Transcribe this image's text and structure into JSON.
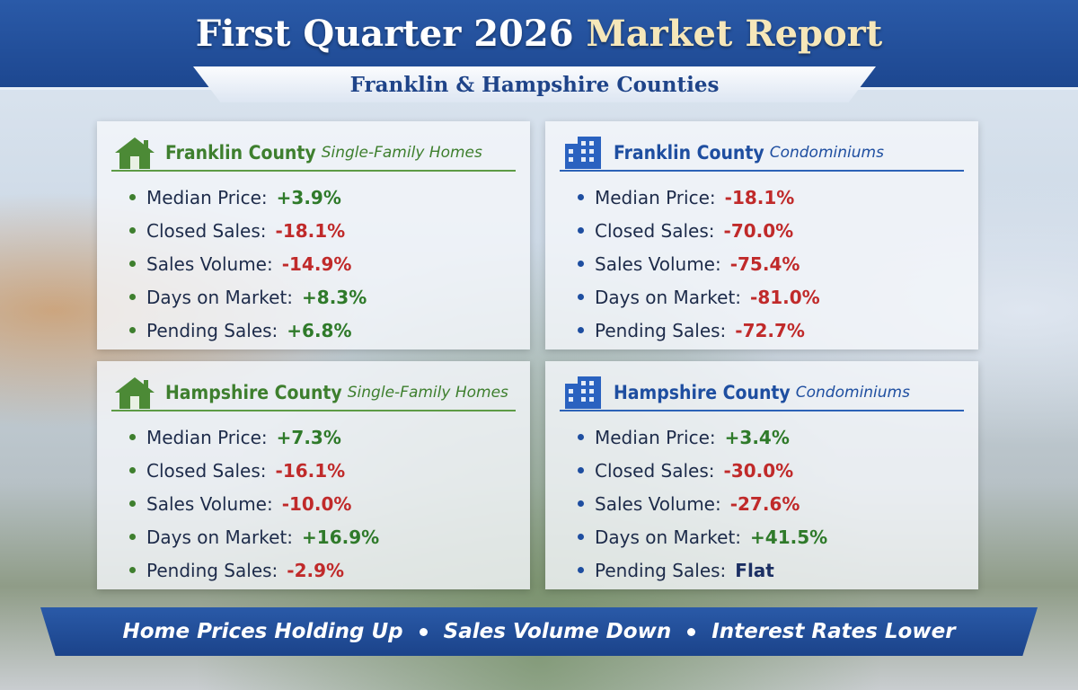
{
  "header": {
    "title_lead": "First Quarter 2026",
    "title_tail": "Market Report",
    "subtitle": "Franklin & Hampshire Counties"
  },
  "panels": [
    {
      "county": "Franklin County",
      "kind": "Single-Family Homes",
      "items": [
        {
          "label": "Median Price:",
          "value": "+3.9%"
        },
        {
          "label": "Closed Sales:",
          "value": "-18.1%"
        },
        {
          "label": "Sales Volume:",
          "value": "-14.9%"
        },
        {
          "label": "Days on Market:",
          "value": "+8.3%"
        },
        {
          "label": "Pending Sales:",
          "value": "+6.8%"
        }
      ]
    },
    {
      "county": "Franklin County",
      "kind": "Condominiums",
      "items": [
        {
          "label": "Median Price:",
          "value": "-18.1%"
        },
        {
          "label": "Closed Sales:",
          "value": "-70.0%"
        },
        {
          "label": "Sales Volume:",
          "value": "-75.4%"
        },
        {
          "label": "Days on Market:",
          "value": "-81.0%"
        },
        {
          "label": "Pending Sales:",
          "value": "-72.7%"
        }
      ]
    },
    {
      "county": "Hampshire County",
      "kind": "Single-Family Homes",
      "items": [
        {
          "label": "Median Price:",
          "value": "+7.3%"
        },
        {
          "label": "Closed Sales:",
          "value": "-16.1%"
        },
        {
          "label": "Sales Volume:",
          "value": "-10.0%"
        },
        {
          "label": "Days on Market:",
          "value": "+16.9%"
        },
        {
          "label": "Pending Sales:",
          "value": "-2.9%"
        }
      ]
    },
    {
      "county": "Hampshire County",
      "kind": "Condominiums",
      "items": [
        {
          "label": "Median Price:",
          "value": "+3.4%"
        },
        {
          "label": "Closed Sales:",
          "value": "-30.0%"
        },
        {
          "label": "Sales Volume:",
          "value": "-27.6%"
        },
        {
          "label": "Days on Market:",
          "value": "+41.5%"
        },
        {
          "label": "Pending Sales:",
          "value": "Flat"
        }
      ]
    }
  ],
  "footer": [
    "Home Prices Holding Up",
    "Sales Volume Down",
    "Interest Rates Lower"
  ]
}
